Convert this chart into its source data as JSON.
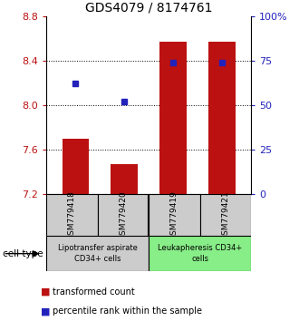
{
  "title": "GDS4079 / 8174761",
  "samples": [
    "GSM779418",
    "GSM779420",
    "GSM779419",
    "GSM779421"
  ],
  "red_values": [
    7.7,
    7.47,
    8.57,
    8.57
  ],
  "blue_values": [
    62,
    52,
    74,
    74
  ],
  "ymin": 7.2,
  "ymax": 8.8,
  "yticks_left": [
    7.2,
    7.6,
    8.0,
    8.4,
    8.8
  ],
  "yticks_right": [
    0,
    25,
    50,
    75,
    100
  ],
  "ytick_labels_right": [
    "0",
    "25",
    "50",
    "75",
    "100%"
  ],
  "red_color": "#bb1111",
  "blue_color": "#2222bb",
  "bar_width": 0.55,
  "group1_label": "Lipotransfer aspirate\nCD34+ cells",
  "group2_label": "Leukapheresis CD34+\ncells",
  "group1_color": "#cccccc",
  "group2_color": "#88ee88",
  "legend_red": "transformed count",
  "legend_blue": "percentile rank within the sample",
  "cell_type_label": "cell type"
}
